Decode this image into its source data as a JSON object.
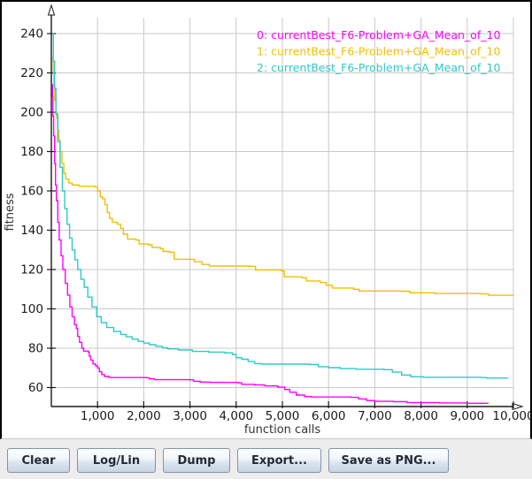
{
  "chart_data": {
    "type": "line",
    "step": true,
    "title": "",
    "xlabel": "function calls",
    "ylabel": "fitness",
    "xlim": [
      0,
      10000
    ],
    "ylim": [
      50,
      250
    ],
    "grid": true,
    "x_ticks": [
      1000,
      2000,
      3000,
      4000,
      5000,
      6000,
      7000,
      8000,
      9000,
      10000
    ],
    "x_tick_labels": [
      "1,000",
      "2,000",
      "3,000",
      "4,000",
      "5,000",
      "6,000",
      "7,000",
      "8,000",
      "9,000",
      "10,000"
    ],
    "y_ticks": [
      60,
      80,
      100,
      120,
      140,
      160,
      180,
      200,
      220,
      240
    ],
    "y_tick_labels": [
      "60",
      "80",
      "100",
      "120",
      "140",
      "160",
      "180",
      "200",
      "220",
      "240"
    ],
    "legend_position": "top-right",
    "legend": [
      {
        "label": "0: currentBest_F6-Problem+GA_Mean_of_10",
        "color": "#ff00ff"
      },
      {
        "label": "1: currentBest_F6-Problem+GA_Mean_of_10",
        "color": "#f0c000"
      },
      {
        "label": "2: currentBest_F6-Problem+GA_Mean_of_10",
        "color": "#30c8c8"
      }
    ],
    "series": [
      {
        "name": "0: currentBest_F6-Problem+GA_Mean_of_10",
        "color": "#ff00ff",
        "points": [
          [
            20,
            214
          ],
          [
            25,
            208
          ],
          [
            35,
            198
          ],
          [
            50,
            188
          ],
          [
            70,
            174
          ],
          [
            90,
            163
          ],
          [
            110,
            155
          ],
          [
            140,
            144
          ],
          [
            170,
            135
          ],
          [
            210,
            127
          ],
          [
            250,
            120
          ],
          [
            300,
            113
          ],
          [
            350,
            107
          ],
          [
            400,
            101
          ],
          [
            450,
            96
          ],
          [
            500,
            92
          ],
          [
            540,
            90
          ],
          [
            570,
            86
          ],
          [
            610,
            83
          ],
          [
            660,
            80
          ],
          [
            700,
            78.5
          ],
          [
            800,
            78
          ],
          [
            820,
            76
          ],
          [
            850,
            74
          ],
          [
            900,
            72
          ],
          [
            960,
            71
          ],
          [
            1000,
            70
          ],
          [
            1040,
            68
          ],
          [
            1090,
            66.6
          ],
          [
            1150,
            65.6
          ],
          [
            1250,
            65.1
          ],
          [
            2050,
            65
          ],
          [
            2120,
            64.4
          ],
          [
            2230,
            64
          ],
          [
            3000,
            63.9
          ],
          [
            3080,
            63.2
          ],
          [
            3220,
            62.8
          ],
          [
            3450,
            62.6
          ],
          [
            4050,
            62.4
          ],
          [
            4120,
            61.6
          ],
          [
            4400,
            61.3
          ],
          [
            4620,
            60.8
          ],
          [
            4900,
            60.2
          ],
          [
            5050,
            59
          ],
          [
            5160,
            57.6
          ],
          [
            5300,
            56.2
          ],
          [
            5480,
            55.4
          ],
          [
            5620,
            55.2
          ],
          [
            6480,
            55
          ],
          [
            6650,
            54.2
          ],
          [
            6820,
            53.4
          ],
          [
            7000,
            53
          ],
          [
            7400,
            52.8
          ],
          [
            7700,
            52.3
          ],
          [
            8400,
            52.2
          ],
          [
            9000,
            52
          ],
          [
            9450,
            51.9
          ]
        ]
      },
      {
        "name": "1: currentBest_F6-Problem+GA_Mean_of_10",
        "color": "#f0c000",
        "points": [
          [
            30,
            228
          ],
          [
            40,
            221
          ],
          [
            55,
            213
          ],
          [
            75,
            206
          ],
          [
            100,
            200
          ],
          [
            115,
            197
          ],
          [
            135,
            191
          ],
          [
            160,
            186
          ],
          [
            190,
            180
          ],
          [
            230,
            174
          ],
          [
            270,
            169
          ],
          [
            310,
            166
          ],
          [
            380,
            164
          ],
          [
            450,
            163
          ],
          [
            600,
            162.4
          ],
          [
            950,
            162
          ],
          [
            1000,
            160
          ],
          [
            1060,
            157
          ],
          [
            1110,
            156
          ],
          [
            1160,
            153
          ],
          [
            1210,
            149
          ],
          [
            1260,
            146
          ],
          [
            1320,
            144
          ],
          [
            1430,
            143
          ],
          [
            1500,
            141
          ],
          [
            1560,
            138
          ],
          [
            1650,
            135.5
          ],
          [
            1830,
            135
          ],
          [
            1900,
            133
          ],
          [
            2100,
            132.6
          ],
          [
            2180,
            131.2
          ],
          [
            2360,
            130.6
          ],
          [
            2420,
            129.2
          ],
          [
            2560,
            128.8
          ],
          [
            2660,
            125.2
          ],
          [
            3100,
            124
          ],
          [
            3260,
            122.6
          ],
          [
            3420,
            121.8
          ],
          [
            4300,
            121.6
          ],
          [
            4420,
            119.8
          ],
          [
            4980,
            119.3
          ],
          [
            5040,
            116.3
          ],
          [
            5420,
            115.8
          ],
          [
            5520,
            114.2
          ],
          [
            5820,
            113.4
          ],
          [
            5950,
            112
          ],
          [
            6080,
            110.6
          ],
          [
            6540,
            110
          ],
          [
            6660,
            109.1
          ],
          [
            7580,
            109
          ],
          [
            7760,
            108.2
          ],
          [
            8300,
            107.8
          ],
          [
            9300,
            107.6
          ],
          [
            9460,
            106.9
          ],
          [
            10000,
            106.8
          ]
        ]
      },
      {
        "name": "2: currentBest_F6-Problem+GA_Mean_of_10",
        "color": "#30c8c8",
        "points": [
          [
            20,
            240
          ],
          [
            45,
            226
          ],
          [
            70,
            212
          ],
          [
            100,
            199
          ],
          [
            140,
            185
          ],
          [
            190,
            172
          ],
          [
            240,
            160
          ],
          [
            290,
            151
          ],
          [
            340,
            143
          ],
          [
            395,
            136
          ],
          [
            450,
            130
          ],
          [
            510,
            125
          ],
          [
            570,
            120
          ],
          [
            640,
            115
          ],
          [
            710,
            111
          ],
          [
            790,
            106
          ],
          [
            880,
            101
          ],
          [
            980,
            96
          ],
          [
            1080,
            93
          ],
          [
            1200,
            90.5
          ],
          [
            1350,
            88.5
          ],
          [
            1500,
            87
          ],
          [
            1620,
            85.8
          ],
          [
            1750,
            84.6
          ],
          [
            1880,
            83.5
          ],
          [
            2000,
            82.6
          ],
          [
            2120,
            81.8
          ],
          [
            2260,
            81
          ],
          [
            2400,
            80.2
          ],
          [
            2520,
            79.7
          ],
          [
            2750,
            79.1
          ],
          [
            3050,
            78.4
          ],
          [
            3400,
            78
          ],
          [
            3750,
            77.6
          ],
          [
            3920,
            76.8
          ],
          [
            4000,
            75.2
          ],
          [
            4120,
            74.4
          ],
          [
            4260,
            73.2
          ],
          [
            4400,
            72.2
          ],
          [
            4560,
            71.9
          ],
          [
            5600,
            71.7
          ],
          [
            5780,
            70.6
          ],
          [
            6000,
            70.1
          ],
          [
            6250,
            69.6
          ],
          [
            6600,
            69.3
          ],
          [
            7200,
            69.1
          ],
          [
            7380,
            67.8
          ],
          [
            7580,
            66.4
          ],
          [
            7780,
            65.5
          ],
          [
            8050,
            65.2
          ],
          [
            9300,
            65.1
          ],
          [
            9420,
            64.8
          ],
          [
            9890,
            64.8
          ]
        ]
      }
    ],
    "colors": {
      "grid": "#c8c8c8",
      "axis": "#1a1a1a",
      "tick_label": "#1a1a1a",
      "axis_label": "#333333",
      "plot_background": "#ffffff"
    }
  },
  "toolbar": {
    "buttons": [
      {
        "label": "Clear"
      },
      {
        "label": "Log/Lin"
      },
      {
        "label": "Dump"
      },
      {
        "label": "Export..."
      },
      {
        "label": "Save as PNG..."
      }
    ]
  }
}
